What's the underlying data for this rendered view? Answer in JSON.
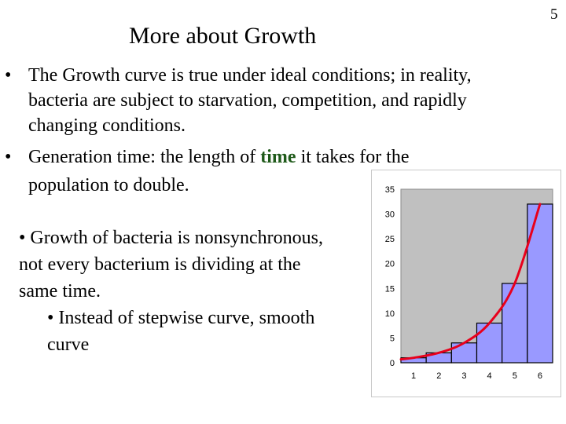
{
  "slide": {
    "title": "More about Growth",
    "page_number": "5"
  },
  "bullets": [
    {
      "lines": [
        "The Growth curve is true under ideal conditions; in reality,",
        "bacteria are subject to starvation, competition, and rapidly",
        "changing conditions."
      ]
    },
    {
      "line1_before": "Generation time: the length of ",
      "line1_emph": "time",
      "line1_after": " it takes for the",
      "line2": "population to double."
    }
  ],
  "sub_points": {
    "lines": [
      "• Growth of bacteria is nonsynchronous,",
      "not every bacterium is dividing at the",
      "same time.",
      "• Instead of stepwise curve, smooth",
      "curve"
    ]
  },
  "chart_data": {
    "type": "bar",
    "categories": [
      "1",
      "2",
      "3",
      "4",
      "5",
      "6"
    ],
    "values": [
      1,
      2,
      4,
      8,
      16,
      32
    ],
    "ylim": [
      0,
      35
    ],
    "yticks": [
      "0",
      "5",
      "10",
      "15",
      "20",
      "25",
      "30",
      "35"
    ],
    "curve": {
      "x": [
        0.5,
        1,
        2,
        3,
        4,
        5,
        6
      ],
      "y": [
        0.7,
        1,
        2,
        4,
        8,
        16,
        32
      ]
    },
    "title": "",
    "xlabel": "",
    "ylabel": "",
    "grid": false,
    "legend": "none",
    "colors": {
      "plot_bg": "#c0c0c0",
      "bar_fill": "#9999ff",
      "bar_stroke": "#000000",
      "curve": "#e8001c"
    }
  }
}
